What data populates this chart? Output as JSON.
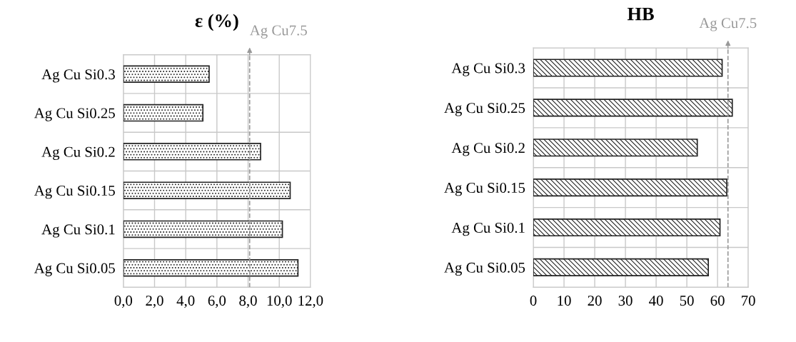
{
  "chart_data": [
    {
      "type": "bar",
      "orientation": "horizontal",
      "title": "ε (%)",
      "categories": [
        "Ag Cu Si0.3",
        "Ag Cu Si0.25",
        "Ag Cu Si0.2",
        "Ag Cu Si0.15",
        "Ag Cu Si0.1",
        "Ag Cu Si0.05"
      ],
      "values": [
        5.5,
        5.1,
        8.8,
        10.7,
        10.2,
        11.2
      ],
      "color": "#222222",
      "xlim": [
        0,
        12
      ],
      "xticks": [
        {
          "value": 0,
          "label": "0,0"
        },
        {
          "value": 2,
          "label": "2,0"
        },
        {
          "value": 4,
          "label": "4,0"
        },
        {
          "value": 6,
          "label": "6,0"
        },
        {
          "value": 8,
          "label": "8,0"
        },
        {
          "value": 10,
          "label": "10,0"
        },
        {
          "value": 12,
          "label": "12,0"
        }
      ],
      "grid": true,
      "ref_lines": [
        {
          "axis": "x",
          "value": 8.1,
          "label": "Ag Cu7.5",
          "color": "#999999",
          "line_style": "dashed"
        }
      ]
    },
    {
      "type": "bar",
      "orientation": "horizontal",
      "title": "HB",
      "categories": [
        "Ag Cu Si0.3",
        "Ag Cu Si0.25",
        "Ag Cu Si0.2",
        "Ag Cu Si0.15",
        "Ag Cu Si0.1",
        "Ag Cu Si0.05"
      ],
      "values": [
        61.5,
        64.8,
        53.4,
        63,
        60.8,
        57
      ],
      "color": "#222222",
      "xlim": [
        0,
        70
      ],
      "xticks": [
        0,
        10,
        20,
        30,
        40,
        50,
        60,
        70
      ],
      "grid": true,
      "ref_lines": [
        {
          "axis": "x",
          "value": 63.4,
          "label": "Ag Cu7.5",
          "color": "#999999",
          "line_style": "dashed"
        }
      ]
    }
  ]
}
